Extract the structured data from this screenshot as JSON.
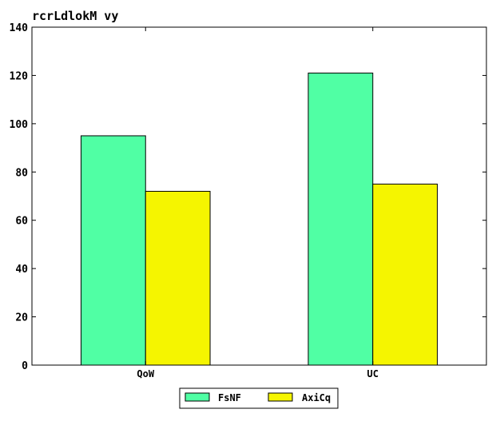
{
  "chart_data": {
    "type": "bar",
    "title": "rcrLdlokM vy",
    "xlabel": "",
    "ylabel": "",
    "categories": [
      "QoW",
      "UC"
    ],
    "series": [
      {
        "name": "FsNF",
        "values": [
          95,
          121
        ],
        "color": "#50ffa4"
      },
      {
        "name": "AxiCq",
        "values": [
          72,
          75
        ],
        "color": "#f5f500"
      }
    ],
    "ylim": [
      0,
      140
    ],
    "yticks": [
      0,
      20,
      40,
      60,
      80,
      100,
      120,
      140
    ],
    "grid": false,
    "legend_position": "bottom-center"
  }
}
